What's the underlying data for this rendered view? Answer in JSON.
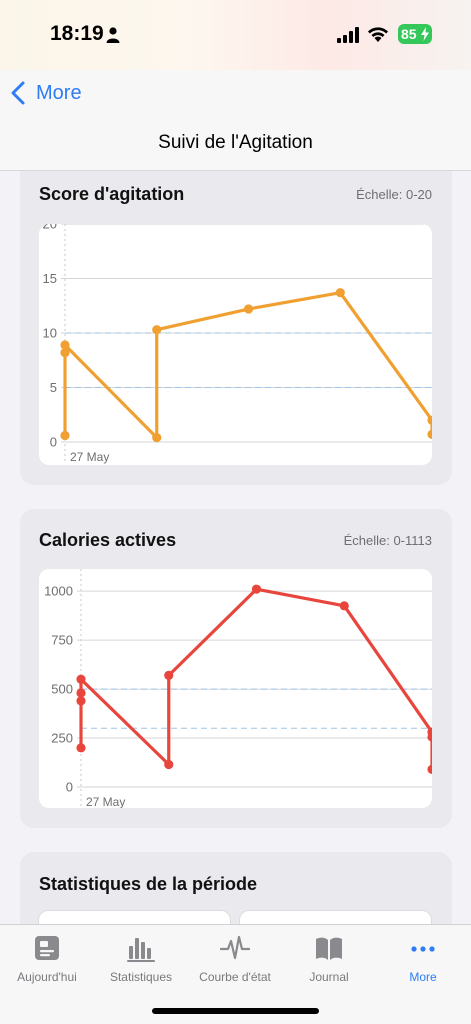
{
  "status_bar": {
    "time": "18:19",
    "battery": "85"
  },
  "nav": {
    "back_label": "More",
    "title": "Suivi de l'Agitation"
  },
  "colors": {
    "accent": "#2f7cf6",
    "agitation_line": "#f0a030",
    "calories_line": "#e8463c",
    "battery": "#35c759"
  },
  "cards": {
    "agitation": {
      "title": "Score d'agitation",
      "scale": "Échelle: 0-20"
    },
    "calories": {
      "title": "Calories actives",
      "scale": "Échelle: 0-1113"
    },
    "stats": {
      "title": "Statistiques de la période"
    }
  },
  "chart_data": [
    {
      "type": "line",
      "title": "Score d'agitation",
      "ylim": [
        0,
        20
      ],
      "yticks": [
        "0",
        "5",
        "10",
        "15",
        "20"
      ],
      "x_tick_label": "27 May",
      "reference_lines": [
        5,
        10
      ],
      "grid": true,
      "series": [
        {
          "points": [
            [
              0.0,
              0.6
            ],
            [
              0.0,
              8.2
            ],
            [
              0.0,
              8.9
            ],
            [
              1.0,
              0.4
            ],
            [
              1.0,
              10.3
            ],
            [
              2.0,
              12.2
            ],
            [
              3.0,
              13.7
            ],
            [
              4.0,
              2.0
            ],
            [
              4.0,
              0.7
            ]
          ]
        }
      ]
    },
    {
      "type": "line",
      "title": "Calories actives",
      "ylim": [
        0,
        1113
      ],
      "yticks": [
        "0",
        "250",
        "500",
        "750",
        "1000"
      ],
      "x_tick_label": "27 May",
      "reference_lines": [
        300,
        500
      ],
      "grid": true,
      "series": [
        {
          "points": [
            [
              0.0,
              200
            ],
            [
              0.0,
              440
            ],
            [
              0.0,
              480
            ],
            [
              0.0,
              550
            ],
            [
              1.0,
              115
            ],
            [
              1.0,
              570
            ],
            [
              2.0,
              1010
            ],
            [
              3.0,
              925
            ],
            [
              4.0,
              280
            ],
            [
              4.0,
              255
            ],
            [
              4.0,
              90
            ]
          ]
        }
      ]
    }
  ],
  "tabbar": {
    "items": [
      {
        "label": "Aujourd'hui",
        "icon": "today-card-icon"
      },
      {
        "label": "Statistiques",
        "icon": "bar-chart-icon"
      },
      {
        "label": "Courbe d'état",
        "icon": "waveform-icon"
      },
      {
        "label": "Journal",
        "icon": "book-icon"
      },
      {
        "label": "More",
        "icon": "ellipsis-icon"
      }
    ]
  }
}
